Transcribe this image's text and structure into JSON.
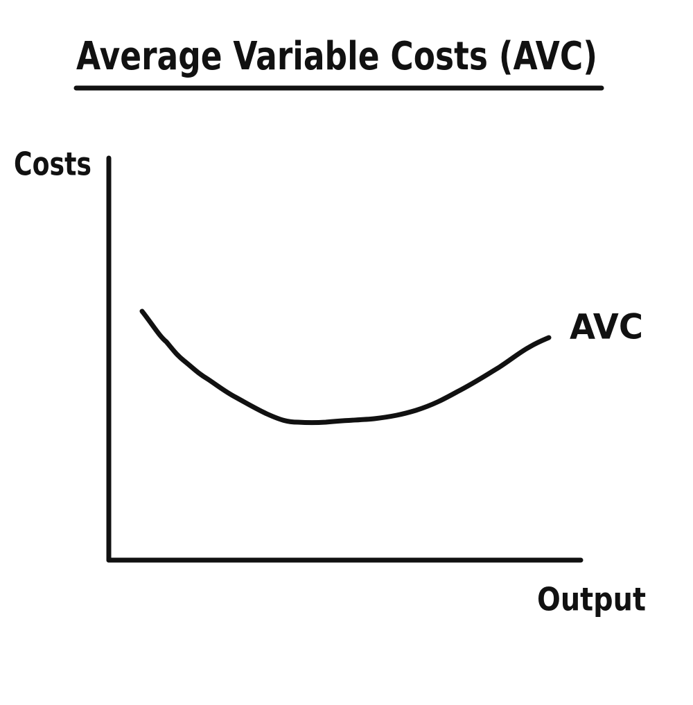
{
  "title": "Average Variable Costs (AVC)",
  "axes": {
    "y_label": "Costs",
    "x_label": "Output"
  },
  "curve": {
    "label": "AVC"
  }
}
